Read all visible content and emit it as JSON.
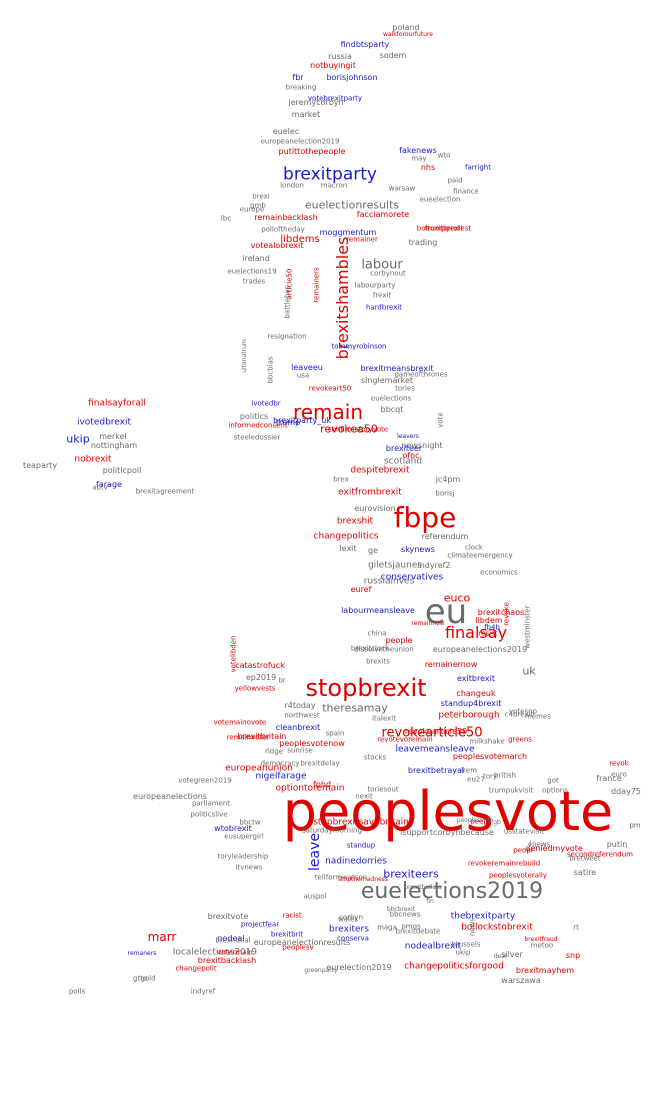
{
  "colors": {
    "gray": "#6b6b6b",
    "red": "#e00000",
    "blue": "#1a1acc"
  },
  "words": [
    {
      "text": "peoplesvote",
      "c": "red"
    },
    {
      "text": "fbpe",
      "c": "red"
    },
    {
      "text": "eu",
      "c": "gray"
    },
    {
      "text": "stopbrexit",
      "c": "red"
    },
    {
      "text": "euelections2019",
      "c": "gray"
    },
    {
      "text": "remain",
      "c": "red"
    },
    {
      "text": "brexitparty",
      "c": "blue"
    },
    {
      "text": "brexitshambles",
      "c": "red"
    },
    {
      "text": "finalsay",
      "c": "red"
    },
    {
      "text": "labour",
      "c": "gray"
    },
    {
      "text": "leave",
      "c": "blue"
    },
    {
      "text": "revokearticle50",
      "c": "red"
    },
    {
      "text": "euelectionresults",
      "c": "gray"
    },
    {
      "text": "theresamay",
      "c": "gray"
    },
    {
      "text": "brexiteers",
      "c": "blue"
    },
    {
      "text": "ukip",
      "c": "blue"
    },
    {
      "text": "euco",
      "c": "red"
    },
    {
      "text": "uk",
      "c": "gray"
    },
    {
      "text": "stopbrexitsavebritain",
      "c": "red"
    },
    {
      "text": "optiontoremain",
      "c": "red"
    },
    {
      "text": "revokea50",
      "c": "red"
    },
    {
      "text": "marr",
      "c": "red"
    },
    {
      "text": "nadinedorries",
      "c": "blue"
    },
    {
      "text": "giletsjaunes",
      "c": "gray"
    },
    {
      "text": "trump",
      "c": "blue"
    },
    {
      "text": "libdems",
      "c": "red"
    },
    {
      "text": "moggmentum",
      "c": "blue"
    },
    {
      "text": "peterborough",
      "c": "red"
    },
    {
      "text": "russiainves",
      "c": "gray"
    },
    {
      "text": "nigelfarage",
      "c": "blue"
    },
    {
      "text": "changepolitics",
      "c": "red"
    },
    {
      "text": "leavemeansleave",
      "c": "blue"
    },
    {
      "text": "despitebrexit",
      "c": "red"
    },
    {
      "text": "bollockstobrexit",
      "c": "red"
    },
    {
      "text": "brexiters",
      "c": "blue"
    },
    {
      "text": "changepoliticsforgood",
      "c": "red"
    },
    {
      "text": "exitfrombrexit",
      "c": "red"
    },
    {
      "text": "brexitbetrayal",
      "c": "blue"
    },
    {
      "text": "europeanunion",
      "c": "red"
    },
    {
      "text": "scotland",
      "c": "gray"
    },
    {
      "text": "conservatives",
      "c": "blue"
    },
    {
      "text": "remainbacklash",
      "c": "red"
    },
    {
      "text": "facciamorete",
      "c": "red"
    },
    {
      "text": "brexitchaos",
      "c": "red"
    },
    {
      "text": "nodealbrexit",
      "c": "blue"
    },
    {
      "text": "thebrexitparty",
      "c": "blue"
    },
    {
      "text": "revokearticle50",
      "c": "red"
    },
    {
      "text": "ivotedbrexit",
      "c": "blue"
    },
    {
      "text": "finalsayforall",
      "c": "red"
    },
    {
      "text": "nobrexit",
      "c": "red"
    },
    {
      "text": "farage",
      "c": "blue"
    },
    {
      "text": "brexshit",
      "c": "red"
    },
    {
      "text": "exitbrexit",
      "c": "blue"
    },
    {
      "text": "changeuk",
      "c": "red"
    },
    {
      "text": "standup4brexit",
      "c": "blue"
    },
    {
      "text": "skynews",
      "c": "blue"
    },
    {
      "text": "eurovision",
      "c": "gray"
    },
    {
      "text": "referendum",
      "c": "gray"
    },
    {
      "text": "europeanelections2019",
      "c": "gray"
    },
    {
      "text": "europeanelections",
      "c": "gray"
    },
    {
      "text": "europeanelectionresults",
      "c": "gray"
    },
    {
      "text": "localelections2019",
      "c": "gray"
    },
    {
      "text": "eurelection2019",
      "c": "gray"
    },
    {
      "text": "isupportcorbynbecause",
      "c": "gray"
    },
    {
      "text": "nhs",
      "c": "red"
    },
    {
      "text": "fbr",
      "c": "blue"
    },
    {
      "text": "borisjohnson",
      "c": "blue"
    },
    {
      "text": "findbtsparty",
      "c": "blue"
    },
    {
      "text": "notbuyingit",
      "c": "red"
    },
    {
      "text": "russia",
      "c": "gray"
    },
    {
      "text": "sodem",
      "c": "gray"
    },
    {
      "text": "poland",
      "c": "gray"
    },
    {
      "text": "walkforourfuture",
      "c": "red"
    },
    {
      "text": "fakenews",
      "c": "blue"
    },
    {
      "text": "putittothepeople",
      "c": "red"
    },
    {
      "text": "london",
      "c": "gray"
    },
    {
      "text": "macron",
      "c": "gray"
    },
    {
      "text": "warsaw",
      "c": "gray"
    },
    {
      "text": "farright",
      "c": "blue"
    },
    {
      "text": "europe",
      "c": "gray"
    },
    {
      "text": "gmb",
      "c": "gray"
    },
    {
      "text": "brexi",
      "c": "gray"
    },
    {
      "text": "ireland",
      "c": "gray"
    },
    {
      "text": "trades",
      "c": "gray"
    },
    {
      "text": "euelections19",
      "c": "gray"
    },
    {
      "text": "trumpprotest",
      "c": "red"
    },
    {
      "text": "trading",
      "c": "gray"
    },
    {
      "text": "corbynout",
      "c": "gray"
    },
    {
      "text": "labourparty",
      "c": "gray"
    },
    {
      "text": "frexit",
      "c": "gray"
    },
    {
      "text": "hardbrexit",
      "c": "blue"
    },
    {
      "text": "battlebus",
      "c": "gray"
    },
    {
      "text": "remainer",
      "c": "red"
    },
    {
      "text": "politics",
      "c": "gray"
    },
    {
      "text": "steeledossier",
      "c": "gray"
    },
    {
      "text": "informedconsent",
      "c": "red"
    },
    {
      "text": "brexitmeansbrexit",
      "c": "blue"
    },
    {
      "text": "singlemarket",
      "c": "gray"
    },
    {
      "text": "tories",
      "c": "gray"
    },
    {
      "text": "tommyrobinson",
      "c": "blue"
    },
    {
      "text": "usa",
      "c": "gray"
    },
    {
      "text": "leaveeu",
      "c": "blue"
    },
    {
      "text": "resignation",
      "c": "gray"
    },
    {
      "text": "bbcqt",
      "c": "gray"
    },
    {
      "text": "euelections",
      "c": "gray"
    },
    {
      "text": "newsnight",
      "c": "gray"
    },
    {
      "text": "brexiteer",
      "c": "blue"
    },
    {
      "text": "brexitparty_uk",
      "c": "blue"
    },
    {
      "text": "leavers",
      "c": "blue"
    },
    {
      "text": "ofoc",
      "c": "red"
    },
    {
      "text": "confirmatoryvote",
      "c": "red"
    },
    {
      "text": "brex",
      "c": "gray"
    },
    {
      "text": "jc4pm",
      "c": "gray"
    },
    {
      "text": "borisj",
      "c": "gray"
    },
    {
      "text": "labourmeansleave",
      "c": "blue"
    },
    {
      "text": "indyref2",
      "c": "gray"
    },
    {
      "text": "libdem",
      "c": "red"
    },
    {
      "text": "fb4b",
      "c": "blue"
    },
    {
      "text": "resist",
      "c": "red"
    },
    {
      "text": "economics",
      "c": "gray"
    },
    {
      "text": "climateemergency",
      "c": "gray"
    },
    {
      "text": "clock",
      "c": "gray"
    },
    {
      "text": "dissolvetheunion",
      "c": "gray"
    },
    {
      "text": "china",
      "c": "gray"
    },
    {
      "text": "people",
      "c": "red"
    },
    {
      "text": "brexitclock",
      "c": "gray"
    },
    {
      "text": "brexits",
      "c": "gray"
    },
    {
      "text": "remainernow",
      "c": "red"
    },
    {
      "text": "catastrofuck",
      "c": "red"
    },
    {
      "text": "ep2019",
      "c": "gray"
    },
    {
      "text": "yellowvests",
      "c": "red"
    },
    {
      "text": "r4today",
      "c": "gray"
    },
    {
      "text": "northwest",
      "c": "gray"
    },
    {
      "text": "cleanbrexit",
      "c": "blue"
    },
    {
      "text": "brexitbritain",
      "c": "red"
    },
    {
      "text": "peoplesvotenow",
      "c": "red"
    },
    {
      "text": "sunrise",
      "c": "gray"
    },
    {
      "text": "ridge",
      "c": "gray"
    },
    {
      "text": "democracy",
      "c": "gray"
    },
    {
      "text": "brexitdelay",
      "c": "gray"
    },
    {
      "text": "peoplesvotemarch",
      "c": "red"
    },
    {
      "text": "milkshake",
      "c": "gray"
    },
    {
      "text": "italexit",
      "c": "gray"
    },
    {
      "text": "spain",
      "c": "gray"
    },
    {
      "text": "stocks",
      "c": "gray"
    },
    {
      "text": "fphd",
      "c": "red"
    },
    {
      "text": "votegreen2019",
      "c": "gray"
    },
    {
      "text": "parliament",
      "c": "gray"
    },
    {
      "text": "politicslive",
      "c": "gray"
    },
    {
      "text": "wtobrexit",
      "c": "blue"
    },
    {
      "text": "eusupergirl",
      "c": "gray"
    },
    {
      "text": "bbctw",
      "c": "gray"
    },
    {
      "text": "saturdaymorning",
      "c": "gray"
    },
    {
      "text": "toryleadership",
      "c": "gray"
    },
    {
      "text": "itvnews",
      "c": "gray"
    },
    {
      "text": "tellformwatson",
      "c": "gray"
    },
    {
      "text": "auspol",
      "c": "gray"
    },
    {
      "text": "corbyn",
      "c": "gray"
    },
    {
      "text": "bbcnews",
      "c": "gray"
    },
    {
      "text": "pmqs",
      "c": "gray"
    },
    {
      "text": "maga",
      "c": "gray"
    },
    {
      "text": "brexitvote",
      "c": "gray"
    },
    {
      "text": "racist",
      "c": "red"
    },
    {
      "text": "projectfear",
      "c": "blue"
    },
    {
      "text": "brexitbrit",
      "c": "blue"
    },
    {
      "text": "nodeal",
      "c": "blue"
    },
    {
      "text": "brexitdeal",
      "c": "gray"
    },
    {
      "text": "votermain",
      "c": "red"
    },
    {
      "text": "conserva",
      "c": "blue"
    },
    {
      "text": "brexitdebate",
      "c": "gray"
    },
    {
      "text": "brexitbacklash",
      "c": "red"
    },
    {
      "text": "changepolit",
      "c": "red"
    },
    {
      "text": "gold",
      "c": "gray"
    },
    {
      "text": "gtto",
      "c": "gray"
    },
    {
      "text": "indyref",
      "c": "gray"
    },
    {
      "text": "polls",
      "c": "gray"
    },
    {
      "text": "warszawa",
      "c": "gray"
    },
    {
      "text": "brexitmayhem",
      "c": "red"
    },
    {
      "text": "silver",
      "c": "gray"
    },
    {
      "text": "snp",
      "c": "red"
    },
    {
      "text": "satire",
      "c": "gray"
    },
    {
      "text": "bretweet",
      "c": "gray"
    },
    {
      "text": "peoplesvoterally",
      "c": "red"
    },
    {
      "text": "secondreferendum",
      "c": "red"
    },
    {
      "text": "peopl",
      "c": "red"
    },
    {
      "text": "deniedmyvote",
      "c": "red"
    },
    {
      "text": "putin",
      "c": "gray"
    },
    {
      "text": "dday75",
      "c": "gray"
    },
    {
      "text": "france",
      "c": "gray"
    },
    {
      "text": "euro",
      "c": "gray"
    },
    {
      "text": "revok",
      "c": "red"
    },
    {
      "text": "greens",
      "c": "red"
    },
    {
      "text": "votesnp",
      "c": "gray"
    },
    {
      "text": "memes",
      "c": "gray"
    },
    {
      "text": "trumpukvisit",
      "c": "gray"
    },
    {
      "text": "tory",
      "c": "gray"
    },
    {
      "text": "usstatevisit",
      "c": "gray"
    },
    {
      "text": "politicpoll",
      "c": "gray"
    },
    {
      "text": "nottingham",
      "c": "gray"
    },
    {
      "text": "merkel",
      "c": "gray"
    },
    {
      "text": "teaparty",
      "c": "gray"
    },
    {
      "text": "abtv",
      "c": "gray"
    },
    {
      "text": "brexitagreement",
      "c": "gray"
    },
    {
      "text": "jeremycorbyn",
      "c": "gray"
    },
    {
      "text": "market",
      "c": "gray"
    },
    {
      "text": "euelec",
      "c": "gray"
    },
    {
      "text": "votebrexitparty",
      "c": "blue"
    },
    {
      "text": "breaking",
      "c": "gray"
    },
    {
      "text": "europeanelection2019",
      "c": "gray"
    },
    {
      "text": "may",
      "c": "gray"
    },
    {
      "text": "paid",
      "c": "gray"
    },
    {
      "text": "finance",
      "c": "gray"
    },
    {
      "text": "eueelection",
      "c": "gray"
    },
    {
      "text": "lbc",
      "c": "gray"
    },
    {
      "text": "polloftheday",
      "c": "gray"
    },
    {
      "text": "votealobrexit",
      "c": "red"
    },
    {
      "text": "boltoxitbrexit",
      "c": "red"
    },
    {
      "text": "remainers",
      "c": "red"
    },
    {
      "text": "article50",
      "c": "red"
    },
    {
      "text": "bbcbias",
      "c": "gray"
    },
    {
      "text": "revokeart50",
      "c": "red"
    },
    {
      "text": "ivotedbr",
      "c": "blue"
    },
    {
      "text": "vote",
      "c": "gray"
    },
    {
      "text": "gameofthrones",
      "c": "gray"
    },
    {
      "text": "ultimatrum",
      "c": "gray"
    },
    {
      "text": "lexit",
      "c": "gray"
    },
    {
      "text": "ge",
      "c": "gray"
    },
    {
      "text": "euref",
      "c": "red"
    },
    {
      "text": "westminster",
      "c": "gray"
    },
    {
      "text": "revoke",
      "c": "red"
    },
    {
      "text": "votelibden",
      "c": "red"
    },
    {
      "text": "votemainovote",
      "c": "red"
    },
    {
      "text": "remainvoter",
      "c": "red"
    },
    {
      "text": "br",
      "c": "gray"
    },
    {
      "text": "revotevoremain",
      "c": "red"
    },
    {
      "text": "lrem",
      "c": "gray"
    },
    {
      "text": "eu27",
      "c": "gray"
    },
    {
      "text": "british",
      "c": "gray"
    },
    {
      "text": "got",
      "c": "gray"
    },
    {
      "text": "options",
      "c": "gray"
    },
    {
      "text": "peep",
      "c": "red"
    },
    {
      "text": "4news",
      "c": "gray"
    },
    {
      "text": "pm",
      "c": "gray"
    },
    {
      "text": "c4brexit",
      "c": "gray"
    },
    {
      "text": "remainnow",
      "c": "red"
    },
    {
      "text": "revokeremainrebuild",
      "c": "red"
    },
    {
      "text": "wales",
      "c": "gray"
    },
    {
      "text": "rt",
      "c": "gray"
    },
    {
      "text": "brussels",
      "c": "gray"
    },
    {
      "text": "news",
      "c": "gray"
    },
    {
      "text": "greenparty",
      "c": "gray"
    },
    {
      "text": "peoplesv",
      "c": "red"
    },
    {
      "text": "metoo",
      "c": "gray"
    },
    {
      "text": "deal",
      "c": "gray"
    },
    {
      "text": "ukip",
      "c": "gray"
    },
    {
      "text": "nexit",
      "c": "gray"
    },
    {
      "text": "toriesout",
      "c": "gray"
    },
    {
      "text": "wto",
      "c": "gray"
    },
    {
      "text": "standup",
      "c": "blue"
    },
    {
      "text": "stopthemadness",
      "c": "red"
    },
    {
      "text": "remaners",
      "c": "blue"
    },
    {
      "text": "gb",
      "c": "gray"
    },
    {
      "text": "peoplesvote",
      "c": "gray"
    },
    {
      "text": "brexitfraud",
      "c": "red"
    },
    {
      "text": "bbcbrexit",
      "c": "gray"
    },
    {
      "text": "fin",
      "c": "gray"
    },
    {
      "text": "brexitballots",
      "c": "gray"
    }
  ]
}
